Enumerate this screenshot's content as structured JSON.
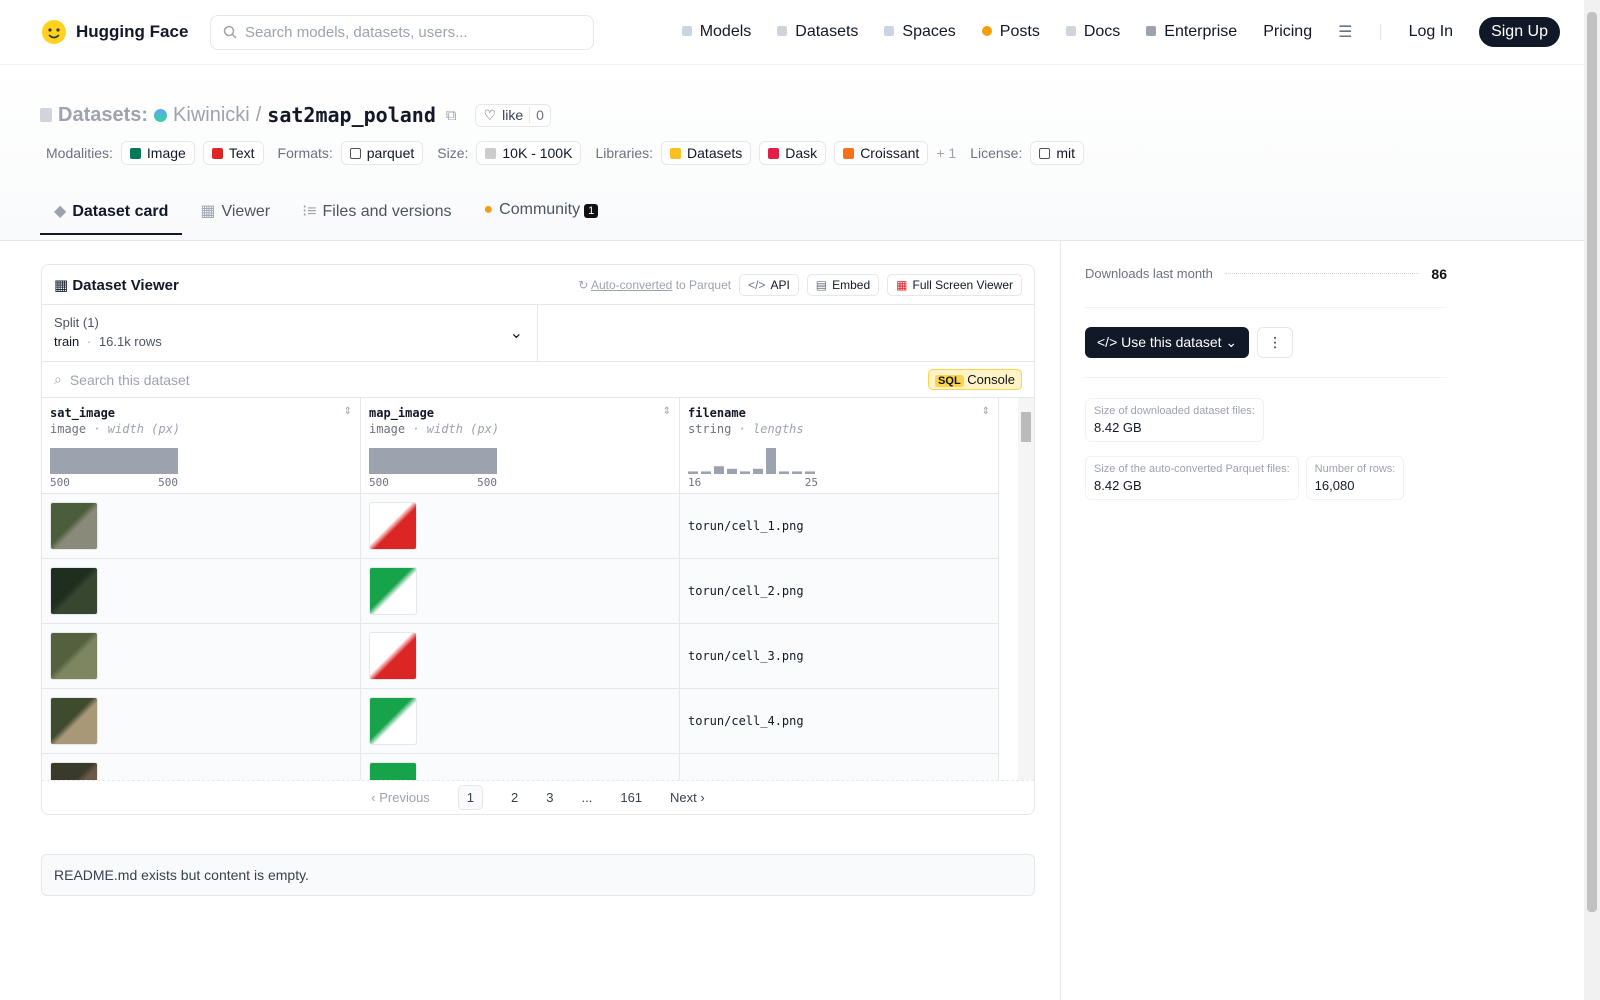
{
  "nav": {
    "brand": "Hugging Face",
    "search_placeholder": "Search models, datasets, users...",
    "links": [
      "Models",
      "Datasets",
      "Spaces",
      "Posts",
      "Docs",
      "Enterprise",
      "Pricing"
    ],
    "login": "Log In",
    "signup": "Sign Up"
  },
  "header": {
    "section": "Datasets:",
    "owner": "Kiwinicki",
    "separator": "/",
    "name": "sat2map_poland",
    "like": "like",
    "likes": 0,
    "tags": [
      {
        "label": "Modalities:",
        "items": [
          "Image",
          "Text"
        ]
      },
      {
        "label": "Formats:",
        "items": [
          "parquet"
        ]
      },
      {
        "label": "Size:",
        "items": [
          "10K - 100K"
        ]
      },
      {
        "label": "Libraries:",
        "items": [
          "Datasets",
          "Dask",
          "Croissant"
        ],
        "more": "+ 1"
      },
      {
        "label": "License:",
        "items": [
          "mit"
        ]
      }
    ]
  },
  "tabs": [
    {
      "label": "Dataset card"
    },
    {
      "label": "Viewer"
    },
    {
      "label": "Files and versions"
    },
    {
      "label": "Community",
      "badge": 1
    }
  ],
  "viewer": {
    "title": "Dataset Viewer",
    "converted": "Auto-converted",
    "converted_suffix": "to Parquet",
    "buttons": [
      "API",
      "Embed",
      "Full Screen Viewer"
    ],
    "split_label": "Split (1)",
    "split": "train",
    "split_sep": "·",
    "rows": "16.1k rows",
    "search_placeholder": "Search this dataset",
    "sql": "SQL",
    "console": "Console",
    "columns": [
      {
        "name": "sat_image",
        "type": "image",
        "stat": "· width (px)",
        "min": "500",
        "max": "500"
      },
      {
        "name": "map_image",
        "type": "image",
        "stat": "· width (px)",
        "min": "500",
        "max": "500"
      },
      {
        "name": "filename",
        "type": "string",
        "stat": "· lengths",
        "min": "16",
        "max": "25",
        "histogram": [
          1,
          1,
          3,
          2,
          1,
          2,
          10,
          1,
          1,
          1
        ]
      }
    ],
    "filenames": [
      "torun/cell_1.png",
      "torun/cell_2.png",
      "torun/cell_3.png",
      "torun/cell_4.png"
    ],
    "pagination": {
      "previous": "Previous",
      "pages": [
        "1",
        "2",
        "3",
        "...",
        "161"
      ],
      "next": "Next"
    }
  },
  "readme": "README.md exists but content is empty.",
  "sidebar": {
    "downloads_label": "Downloads last month",
    "downloads": 86,
    "use_button": "Use this dataset",
    "stats": [
      {
        "label": "Size of downloaded dataset files:",
        "value": "8.42 GB"
      },
      {
        "label": "Size of the auto-converted Parquet files:",
        "value": "8.42 GB"
      },
      {
        "label": "Number of rows:",
        "value": "16,080"
      }
    ]
  }
}
